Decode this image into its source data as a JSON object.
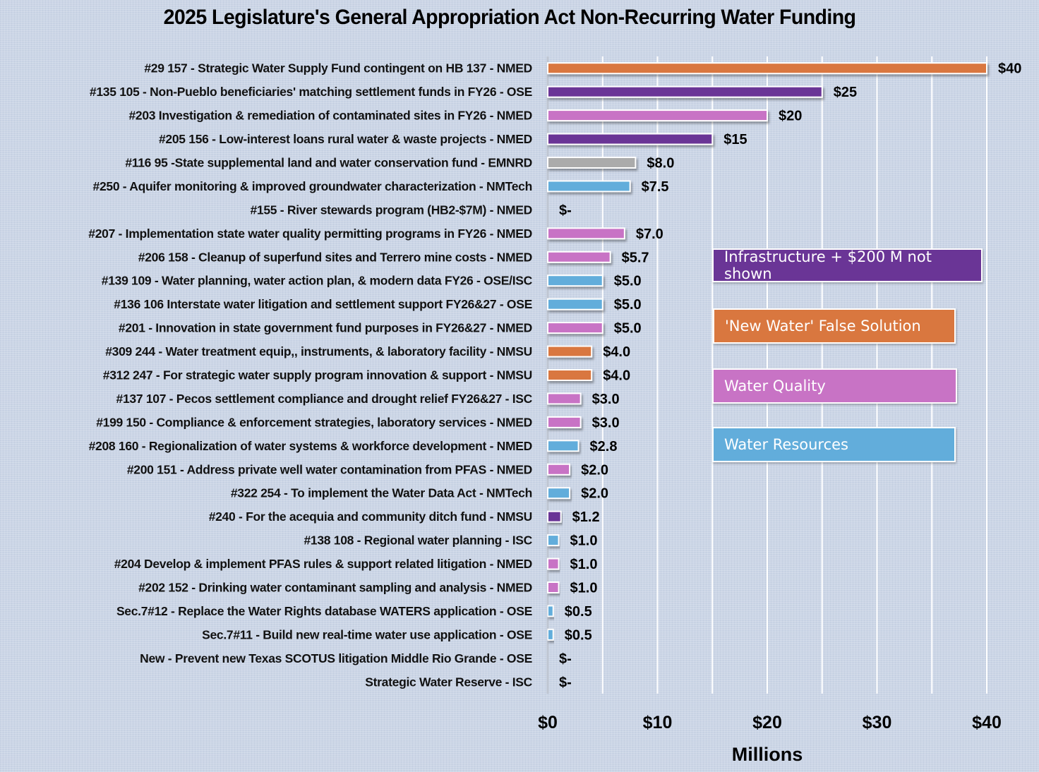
{
  "chart_data": {
    "type": "bar",
    "orientation": "horizontal",
    "title": "2025 Legislature's General Appropriation Act Non-Recurring Water Funding",
    "xlabel": "Millions",
    "ylabel": "",
    "xlim": [
      0,
      40
    ],
    "x_ticks": [
      0,
      10,
      20,
      30,
      40
    ],
    "x_tick_labels": [
      "$0",
      "$10",
      "$20",
      "$30",
      "$40"
    ],
    "gridlines_every": 5,
    "grid": true,
    "legend_placement": "right-middle",
    "categories_legend": [
      {
        "key": "infrastructure",
        "label": "Infrastructure  + $200 M not shown",
        "color": "#6A3596"
      },
      {
        "key": "new_water",
        "label": "'New Water' False Solution",
        "color": "#D9773F"
      },
      {
        "key": "water_quality",
        "label": "Water Quality",
        "color": "#C873C5"
      },
      {
        "key": "water_resources",
        "label": "Water Resources",
        "color": "#62ADDB"
      }
    ],
    "colors": {
      "infrastructure": "#6A3596",
      "new_water": "#D9773F",
      "water_quality": "#C873C5",
      "water_resources": "#62ADDB",
      "other": "#ABABAB"
    },
    "bars": [
      {
        "label": "#29 157 - Strategic Water Supply Fund contingent on HB 137 - NMED",
        "value": 40,
        "value_label": "$40",
        "category": "new_water"
      },
      {
        "label": "#135 105 - Non-Pueblo beneficiaries' matching settlement funds in FY26 - OSE",
        "value": 25,
        "value_label": "$25",
        "category": "infrastructure"
      },
      {
        "label": "#203 Investigation & remediation of contaminated sites in FY26 - NMED",
        "value": 20,
        "value_label": "$20",
        "category": "water_quality"
      },
      {
        "label": "#205 156 - Low-interest loans rural water & waste projects - NMED",
        "value": 15,
        "value_label": "$15",
        "category": "infrastructure"
      },
      {
        "label": "#116 95 -State supplemental land and water conservation fund - EMNRD",
        "value": 8.0,
        "value_label": "$8.0",
        "category": "other"
      },
      {
        "label": "#250 -  Aquifer monitoring & improved groundwater characterization - NMTech",
        "value": 7.5,
        "value_label": "$7.5",
        "category": "water_resources"
      },
      {
        "label": "#155 - River stewards program (HB2-$7M) - NMED",
        "value": 0,
        "value_label": "$-",
        "category": "water_quality"
      },
      {
        "label": "#207 - Implementation state water quality permitting programs in FY26 - NMED",
        "value": 7.0,
        "value_label": "$7.0",
        "category": "water_quality"
      },
      {
        "label": "#206 158 - Cleanup of superfund sites and Terrero mine costs - NMED",
        "value": 5.7,
        "value_label": "$5.7",
        "category": "water_quality"
      },
      {
        "label": "#139 109 - Water planning, water action plan, & modern data FY26 - OSE/ISC",
        "value": 5.0,
        "value_label": "$5.0",
        "category": "water_resources"
      },
      {
        "label": "#136 106 Interstate water litigation and settlement support FY26&27 - OSE",
        "value": 5.0,
        "value_label": "$5.0",
        "category": "water_resources"
      },
      {
        "label": "#201 - Innovation in state government fund purposes in FY26&27 - NMED",
        "value": 5.0,
        "value_label": "$5.0",
        "category": "water_quality"
      },
      {
        "label": "#309 244 - Water treatment equip,, instruments, & laboratory facility - NMSU",
        "value": 4.0,
        "value_label": "$4.0",
        "category": "new_water"
      },
      {
        "label": "#312 247 - For strategic water supply program innovation & support - NMSU",
        "value": 4.0,
        "value_label": "$4.0",
        "category": "new_water"
      },
      {
        "label": "#137 107 - Pecos settlement compliance and drought relief FY26&27 - ISC",
        "value": 3.0,
        "value_label": "$3.0",
        "category": "water_quality"
      },
      {
        "label": "#199 150 - Compliance & enforcement strategies,  laboratory services - NMED",
        "value": 3.0,
        "value_label": "$3.0",
        "category": "water_quality"
      },
      {
        "label": "#208 160 - Regionalization of water systems & workforce development  - NMED",
        "value": 2.8,
        "value_label": "$2.8",
        "category": "water_resources"
      },
      {
        "label": "#200 151 - Address private well water contamination from PFAS - NMED",
        "value": 2.0,
        "value_label": "$2.0",
        "category": "water_quality"
      },
      {
        "label": "#322 254 - To implement the Water Data Act - NMTech",
        "value": 2.0,
        "value_label": "$2.0",
        "category": "water_resources"
      },
      {
        "label": "#240 - For the acequia and community ditch fund - NMSU",
        "value": 1.2,
        "value_label": "$1.2",
        "category": "infrastructure"
      },
      {
        "label": "#138 108 - Regional water planning - ISC",
        "value": 1.0,
        "value_label": "$1.0",
        "category": "water_resources"
      },
      {
        "label": "#204 Develop & implement PFAS rules & support related litigation - NMED",
        "value": 1.0,
        "value_label": "$1.0",
        "category": "water_quality"
      },
      {
        "label": "#202 152 - Drinking water contaminant sampling and analysis - NMED",
        "value": 1.0,
        "value_label": "$1.0",
        "category": "water_quality"
      },
      {
        "label": "Sec.7#12 - Replace the Water Rights database WATERS application - OSE",
        "value": 0.5,
        "value_label": "$0.5",
        "category": "water_resources"
      },
      {
        "label": "Sec.7#11 - Build new real-time water use application - OSE",
        "value": 0.5,
        "value_label": "$0.5",
        "category": "water_resources"
      },
      {
        "label": "New - Prevent new Texas SCOTUS litigation Middle Rio Grande - OSE",
        "value": 0,
        "value_label": "$-",
        "category": "water_resources"
      },
      {
        "label": "Strategic Water Reserve - ISC",
        "value": 0,
        "value_label": "$-",
        "category": "water_resources"
      }
    ]
  }
}
